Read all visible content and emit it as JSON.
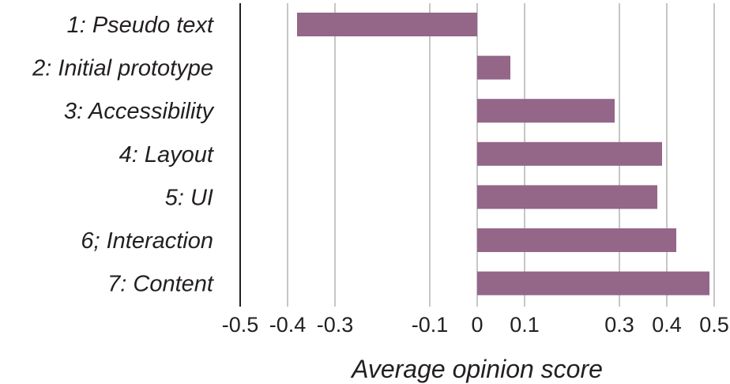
{
  "chart_data": {
    "type": "bar",
    "orientation": "horizontal",
    "categories": [
      "1: Pseudo text",
      "2: Initial prototype",
      "3: Accessibility",
      "4: Layout",
      "5: UI",
      "6; Interaction",
      "7: Content"
    ],
    "values": [
      -0.38,
      0.07,
      0.29,
      0.39,
      0.38,
      0.42,
      0.49
    ],
    "x_ticks": [
      -0.5,
      -0.4,
      -0.3,
      -0.1,
      0,
      0.1,
      0.3,
      0.4,
      0.5
    ],
    "x_tick_labels": [
      "-0.5",
      "-0.4",
      "-0.3",
      "-0.1",
      "0",
      "0.1",
      "0.3",
      "0.4",
      "0.5"
    ],
    "xlabel": "Average opinion score",
    "xlim": [
      -0.5,
      0.5
    ],
    "grid": "vertical",
    "legend": "none",
    "bar_color": "#946688",
    "grid_color": "#c6c6c6",
    "axis_color": "#231f20"
  }
}
